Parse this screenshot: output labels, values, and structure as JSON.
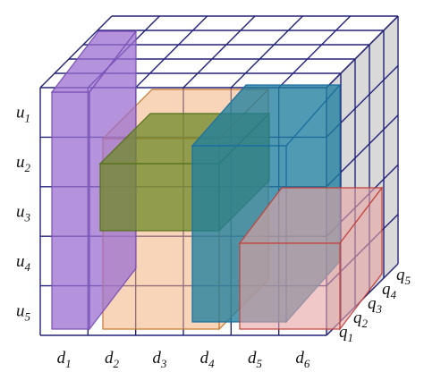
{
  "rows": [
    {
      "letter": "u",
      "index": "1"
    },
    {
      "letter": "u",
      "index": "2"
    },
    {
      "letter": "u",
      "index": "3"
    },
    {
      "letter": "u",
      "index": "4"
    },
    {
      "letter": "u",
      "index": "5"
    }
  ],
  "columns": [
    {
      "letter": "d",
      "index": "1"
    },
    {
      "letter": "d",
      "index": "2"
    },
    {
      "letter": "d",
      "index": "3"
    },
    {
      "letter": "d",
      "index": "4"
    },
    {
      "letter": "d",
      "index": "5"
    },
    {
      "letter": "d",
      "index": "6"
    }
  ],
  "depth": [
    {
      "letter": "q",
      "index": "1"
    },
    {
      "letter": "q",
      "index": "2"
    },
    {
      "letter": "q",
      "index": "3"
    },
    {
      "letter": "q",
      "index": "4"
    },
    {
      "letter": "q",
      "index": "5"
    }
  ]
}
